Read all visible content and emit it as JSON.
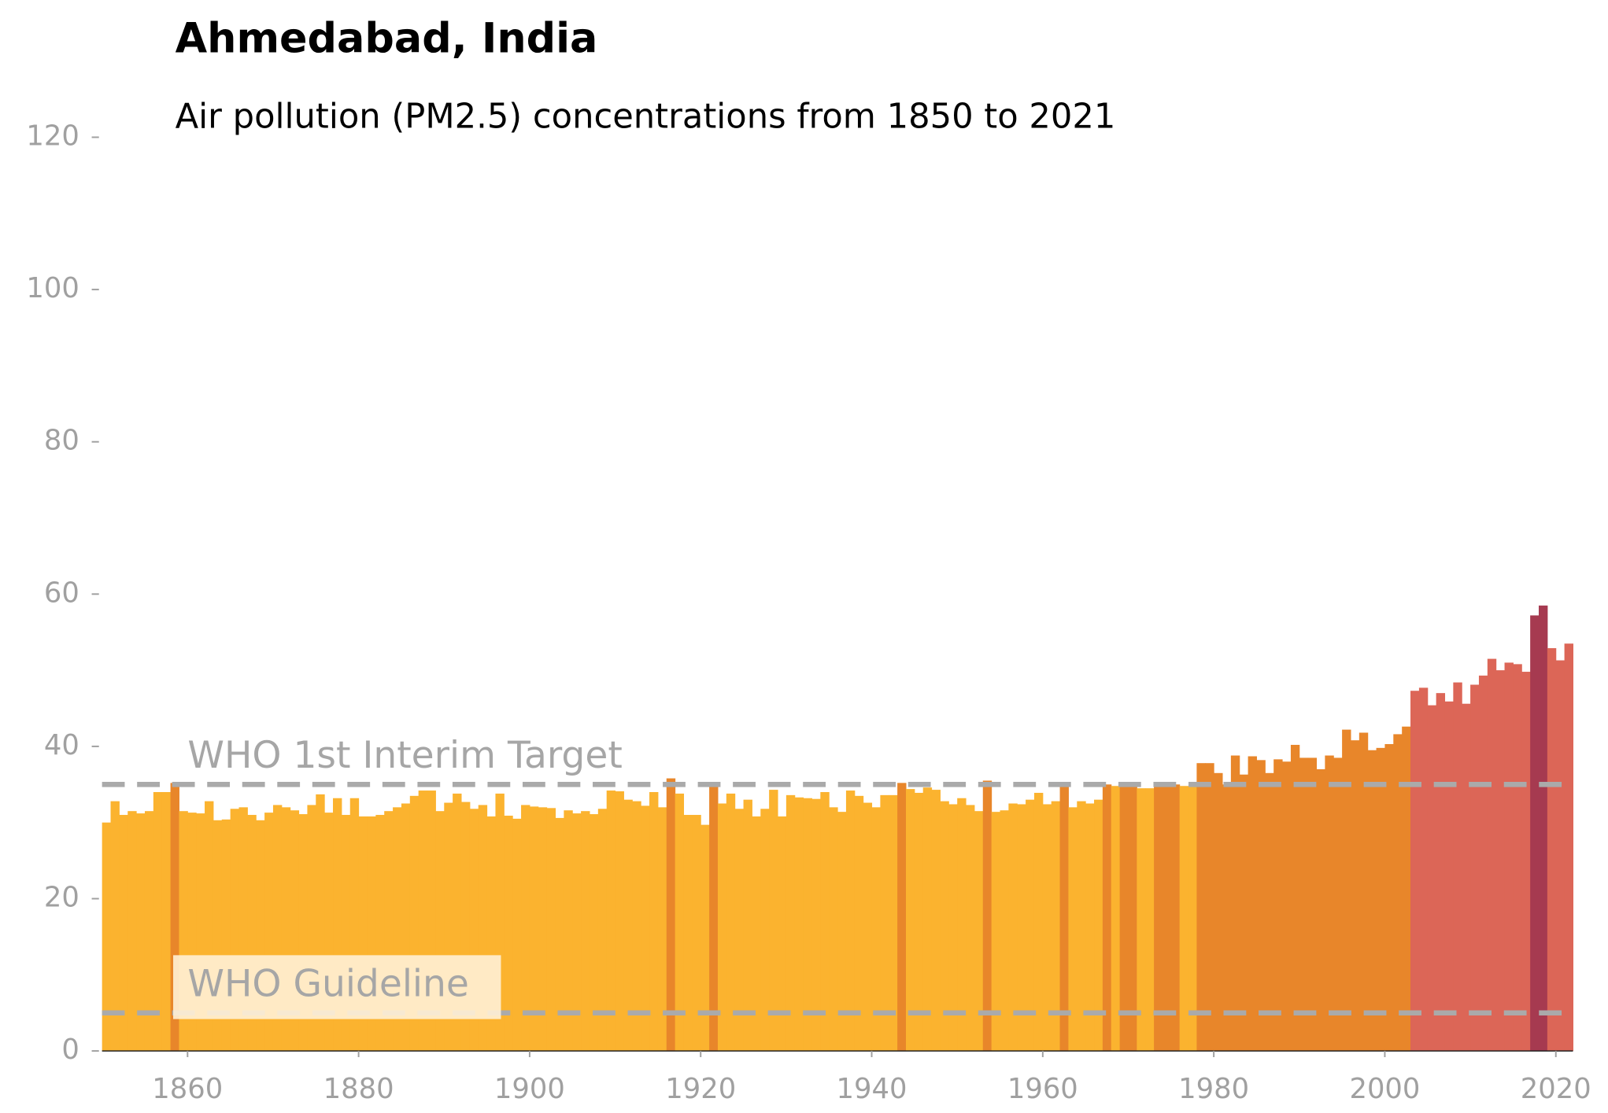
{
  "chart_data": {
    "type": "bar",
    "title": "Ahmedabad, India",
    "subtitle": "Air pollution (PM2.5) concentrations from 1850 to 2021",
    "x": [
      1850,
      1851,
      1852,
      1853,
      1854,
      1855,
      1856,
      1857,
      1858,
      1859,
      1860,
      1861,
      1862,
      1863,
      1864,
      1865,
      1866,
      1867,
      1868,
      1869,
      1870,
      1871,
      1872,
      1873,
      1874,
      1875,
      1876,
      1877,
      1878,
      1879,
      1880,
      1881,
      1882,
      1883,
      1884,
      1885,
      1886,
      1887,
      1888,
      1889,
      1890,
      1891,
      1892,
      1893,
      1894,
      1895,
      1896,
      1897,
      1898,
      1899,
      1900,
      1901,
      1902,
      1903,
      1904,
      1905,
      1906,
      1907,
      1908,
      1909,
      1910,
      1911,
      1912,
      1913,
      1914,
      1915,
      1916,
      1917,
      1918,
      1919,
      1920,
      1921,
      1922,
      1923,
      1924,
      1925,
      1926,
      1927,
      1928,
      1929,
      1930,
      1931,
      1932,
      1933,
      1934,
      1935,
      1936,
      1937,
      1938,
      1939,
      1940,
      1941,
      1942,
      1943,
      1944,
      1945,
      1946,
      1947,
      1948,
      1949,
      1950,
      1951,
      1952,
      1953,
      1954,
      1955,
      1956,
      1957,
      1958,
      1959,
      1960,
      1961,
      1962,
      1963,
      1964,
      1965,
      1966,
      1967,
      1968,
      1969,
      1970,
      1971,
      1972,
      1973,
      1974,
      1975,
      1976,
      1977,
      1978,
      1979,
      1980,
      1981,
      1982,
      1983,
      1984,
      1985,
      1986,
      1987,
      1988,
      1989,
      1990,
      1991,
      1992,
      1993,
      1994,
      1995,
      1996,
      1997,
      1998,
      1999,
      2000,
      2001,
      2002,
      2003,
      2004,
      2005,
      2006,
      2007,
      2008,
      2009,
      2010,
      2011,
      2012,
      2013,
      2014,
      2015,
      2016,
      2017,
      2018,
      2019,
      2020,
      2021
    ],
    "values": [
      30.0,
      32.8,
      31.0,
      31.5,
      31.2,
      31.5,
      34.0,
      34.0,
      35.2,
      31.5,
      31.3,
      31.2,
      32.8,
      30.3,
      30.4,
      31.8,
      32.0,
      31.0,
      30.3,
      31.3,
      32.3,
      32.0,
      31.6,
      31.1,
      32.3,
      33.7,
      31.3,
      33.2,
      31.0,
      33.2,
      30.8,
      30.8,
      31.0,
      31.5,
      32.0,
      32.5,
      33.5,
      34.2,
      34.2,
      31.5,
      32.6,
      33.8,
      32.7,
      31.8,
      32.3,
      30.8,
      33.8,
      30.9,
      30.5,
      32.3,
      32.1,
      32.0,
      31.9,
      30.6,
      31.6,
      31.2,
      31.5,
      31.1,
      31.8,
      34.2,
      34.1,
      33.0,
      32.8,
      32.2,
      34.0,
      32.0,
      35.8,
      33.8,
      31.0,
      31.0,
      29.7,
      35.0,
      32.5,
      33.8,
      31.8,
      33.0,
      30.8,
      31.8,
      34.3,
      30.8,
      33.6,
      33.3,
      33.2,
      33.1,
      34.0,
      32.0,
      31.4,
      34.2,
      33.5,
      32.6,
      32.0,
      33.6,
      33.6,
      35.2,
      34.4,
      33.9,
      34.6,
      34.3,
      32.8,
      32.4,
      33.2,
      32.3,
      31.5,
      35.5,
      31.4,
      31.6,
      32.5,
      32.4,
      33.0,
      33.9,
      32.4,
      32.8,
      35.0,
      32.0,
      32.8,
      32.5,
      33.0,
      35.0,
      34.8,
      35.0,
      35.0,
      34.5,
      34.5,
      35.0,
      35.0,
      35.0,
      34.8,
      34.8,
      37.8,
      37.8,
      36.5,
      35.0,
      38.8,
      36.3,
      38.7,
      38.2,
      36.5,
      38.3,
      38.0,
      40.2,
      38.5,
      38.5,
      37.0,
      38.8,
      38.5,
      42.2,
      40.8,
      41.8,
      39.5,
      39.8,
      40.3,
      41.6,
      42.6,
      47.3,
      47.7,
      45.4,
      47.0,
      45.9,
      48.4,
      45.6,
      48.1,
      49.3,
      51.5,
      50.0,
      51.0,
      50.8,
      49.8,
      57.2,
      58.5,
      52.9,
      51.3,
      53.5
    ],
    "color_thresholds": [
      {
        "min": 0,
        "color": "#fbb32f"
      },
      {
        "min": 35,
        "color": "#e8862a"
      },
      {
        "min": 45,
        "color": "#dc6657"
      },
      {
        "min": 57,
        "color": "#a63a50"
      }
    ],
    "reference_lines": [
      {
        "label": "WHO 1st Interim Target",
        "value": 35
      },
      {
        "label": "WHO Guideline",
        "value": 5
      }
    ],
    "xlim": [
      1850,
      2022
    ],
    "xticks": [
      1860,
      1880,
      1900,
      1920,
      1940,
      1960,
      1980,
      2000,
      2020
    ],
    "ylim": [
      0,
      120
    ],
    "yticks": [
      0,
      20,
      40,
      60,
      80,
      100,
      120
    ]
  }
}
